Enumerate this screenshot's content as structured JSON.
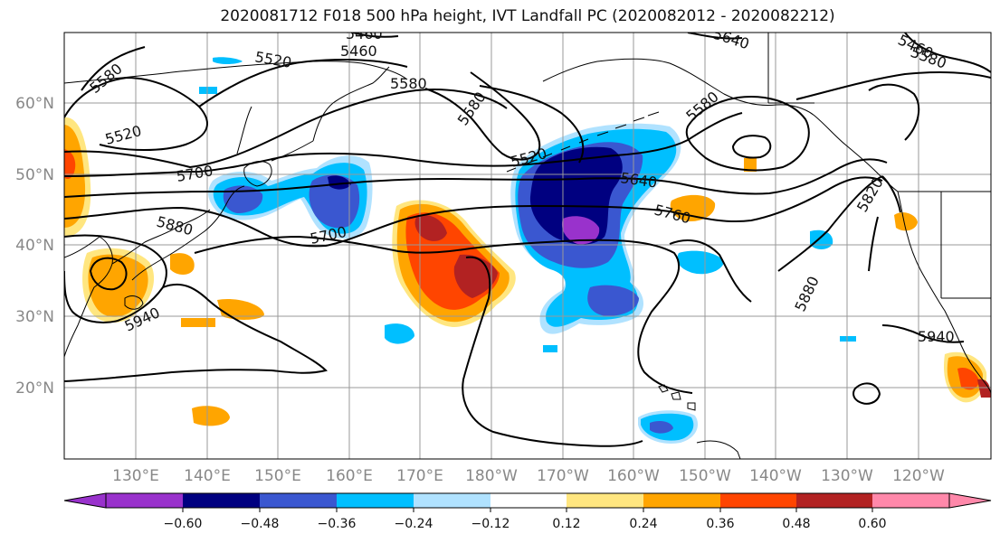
{
  "title": "2020081712 F018 500 hPa height, IVT Landfall PC (2020082012 - 2020082212)",
  "map": {
    "region": "North Pacific",
    "lon_labels": [
      "130°E",
      "140°E",
      "150°E",
      "160°E",
      "170°E",
      "180°W",
      "170°W",
      "160°W",
      "150°W",
      "140°W",
      "130°W",
      "120°W"
    ],
    "lat_labels": [
      "60°N",
      "50°N",
      "40°N",
      "30°N",
      "20°N"
    ],
    "label_color": "#888888",
    "grid": true
  },
  "contours": {
    "field": "500 hPa height",
    "labels": [
      "5460",
      "5460",
      "5640",
      "5520",
      "5580",
      "5460",
      "5580",
      "5580",
      "5520",
      "5580",
      "5580",
      "5520",
      "5700",
      "5640",
      "5760",
      "5880",
      "5700",
      "5820",
      "5940",
      "5880",
      "5940"
    ]
  },
  "shading": {
    "field": "IVT Landfall PC",
    "palette": {
      "lt_-0.60": "#9932CC",
      "-0.60_-0.48": "#000080",
      "-0.48_-0.36": "#3A57D0",
      "-0.36_-0.24": "#00BFFF",
      "-0.24_-0.12": "#B0E2FF",
      "-0.12_0.12": "#FFFFFF",
      "0.12_0.24": "#FFE680",
      "0.24_0.36": "#FFA500",
      "0.36_0.48": "#FF4500",
      "0.48_0.60": "#B22222",
      "gt_0.60": "#FF88AA"
    }
  },
  "colorbar": {
    "colors": [
      "#9932CC",
      "#000080",
      "#3A57D0",
      "#00BFFF",
      "#B0E2FF",
      "#FFFFFF",
      "#FFE680",
      "#FFA500",
      "#FF4500",
      "#B22222",
      "#FF88AA"
    ],
    "ticks": [
      "−0.60",
      "−0.48",
      "−0.36",
      "−0.24",
      "−0.12",
      "0.12",
      "0.24",
      "0.36",
      "0.48",
      "0.60"
    ]
  }
}
